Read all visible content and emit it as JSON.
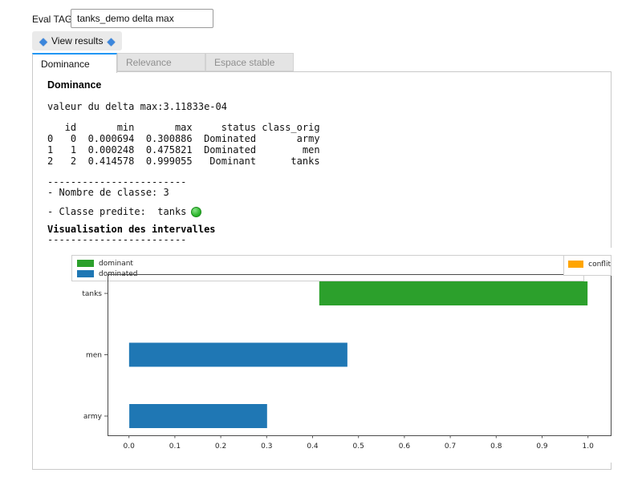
{
  "header": {
    "eval_tag_label": "Eval TAG",
    "eval_tag_value": "tanks_demo delta max",
    "view_results_label": "View results",
    "diamond_glyph": "◆"
  },
  "tabs": [
    {
      "label": "Dominance",
      "active": true
    },
    {
      "label": "Relevance",
      "active": false
    },
    {
      "label": "Espace stable",
      "active": false
    }
  ],
  "panel": {
    "title": "Dominance",
    "delta_line": "valeur du delta max:3.11833e-04",
    "table": {
      "columns": [
        "",
        "id",
        "min",
        "max",
        "status",
        "class_orig"
      ],
      "rows": [
        [
          "0",
          "0",
          "0.000694",
          "0.300886",
          "Dominated",
          "army"
        ],
        [
          "1",
          "1",
          "0.000248",
          "0.475821",
          "Dominated",
          "men"
        ],
        [
          "2",
          "2",
          "0.414578",
          "0.999055",
          "Dominant",
          "tanks"
        ]
      ]
    },
    "table_lines": [
      "   id       min       max     status class_orig",
      "0   0  0.000694  0.300886  Dominated       army",
      "1   1  0.000248  0.475821  Dominated        men",
      "2   2  0.414578  0.999055   Dominant      tanks"
    ],
    "separator": "------------------------",
    "nombre_line": "- Nombre de classe: 3",
    "predite_line": "- Classe predite:  tanks",
    "predicted_class": "tanks",
    "predicted_status_color": "#2eb82e",
    "visualisation_title": "Visualisation des intervalles"
  },
  "chart_data": {
    "type": "bar",
    "orientation": "horizontal",
    "title": "",
    "xlabel": "",
    "ylabel": "",
    "xlim": [
      -0.05,
      1.05
    ],
    "x_ticks": [
      0.0,
      0.1,
      0.2,
      0.3,
      0.4,
      0.5,
      0.6,
      0.7,
      0.8,
      0.9,
      1.0
    ],
    "categories_top_to_bottom": [
      "tanks",
      "men",
      "army"
    ],
    "bars": [
      {
        "category": "tanks",
        "start": 0.414578,
        "end": 0.999055,
        "status": "dominant",
        "color": "#2ca02c"
      },
      {
        "category": "men",
        "start": 0.000248,
        "end": 0.475821,
        "status": "dominated",
        "color": "#1f77b4"
      },
      {
        "category": "army",
        "start": 0.000694,
        "end": 0.300886,
        "status": "dominated",
        "color": "#1f77b4"
      }
    ],
    "legend": [
      {
        "label": "dominant",
        "color": "#2ca02c"
      },
      {
        "label": "dominated",
        "color": "#1f77b4"
      },
      {
        "label": "conflit",
        "color": "#ffa500"
      }
    ],
    "legend_position": "top: dominant/dominated left box, conflit right box",
    "grid": false
  }
}
